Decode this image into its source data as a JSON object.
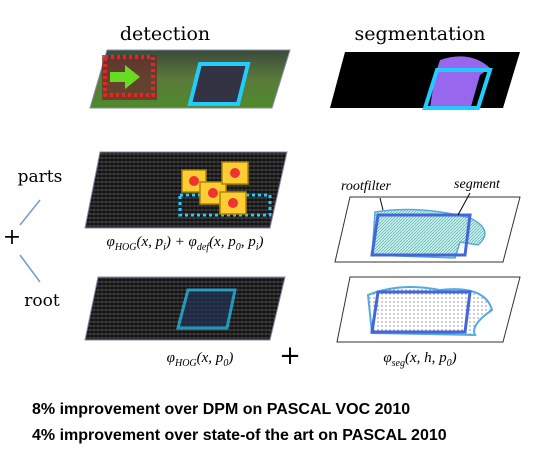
{
  "header": {
    "detection": "detection",
    "segmentation": "segmentation"
  },
  "labels": {
    "parts": "parts",
    "plus_left": "+",
    "root": "root",
    "plus_mid": "+",
    "rootfilter": "rootfilter",
    "segment": "segment"
  },
  "formulas": {
    "parts": [
      "φ",
      "HOG",
      "(x, p",
      "i",
      ") + φ",
      "def",
      "(x, p",
      "0",
      ", p",
      "i",
      ")"
    ],
    "root": [
      "φ",
      "HOG",
      "(x, p",
      "0",
      ")"
    ],
    "seg": [
      "φ",
      "seg",
      "(x, h, p",
      "0",
      ")"
    ]
  },
  "notes": [
    "8% improvement over DPM on PASCAL VOC 2010",
    "4% improvement over state-of the art on PASCAL 2010"
  ]
}
